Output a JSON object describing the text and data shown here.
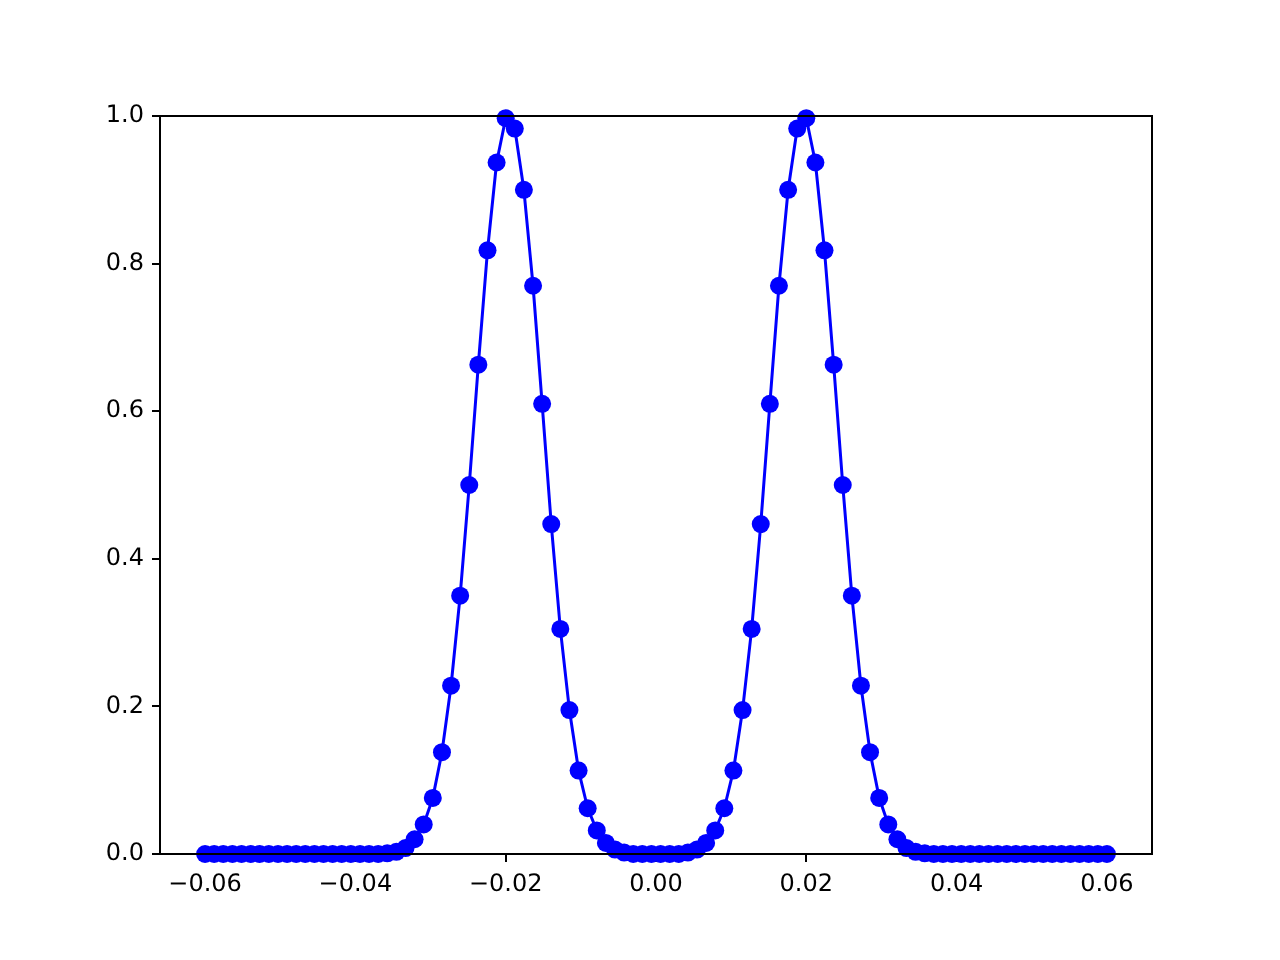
{
  "chart_data": {
    "type": "line",
    "color": "#0000ff",
    "marker": "circle",
    "line_style": "solid",
    "grid": false,
    "legend": false,
    "x": [
      -0.06,
      -0.05879,
      -0.05758,
      -0.05636,
      -0.05515,
      -0.05394,
      -0.05273,
      -0.05152,
      -0.0503,
      -0.04909,
      -0.04788,
      -0.04667,
      -0.04545,
      -0.04424,
      -0.04303,
      -0.04182,
      -0.04061,
      -0.03939,
      -0.03818,
      -0.03697,
      -0.03576,
      -0.03455,
      -0.03333,
      -0.03212,
      -0.03091,
      -0.0297,
      -0.02848,
      -0.02727,
      -0.02606,
      -0.02485,
      -0.02364,
      -0.02242,
      -0.02121,
      -0.02,
      -0.01879,
      -0.01758,
      -0.01636,
      -0.01515,
      -0.01394,
      -0.01273,
      -0.01152,
      -0.0103,
      -0.00909,
      -0.00788,
      -0.00667,
      -0.00545,
      -0.00424,
      -0.00303,
      -0.00182,
      -0.00061,
      0.00061,
      0.00182,
      0.00303,
      0.00424,
      0.00545,
      0.00667,
      0.00788,
      0.00909,
      0.0103,
      0.01152,
      0.01273,
      0.01394,
      0.01515,
      0.01636,
      0.01758,
      0.01879,
      0.02,
      0.02121,
      0.02242,
      0.02364,
      0.02485,
      0.02606,
      0.02727,
      0.02848,
      0.0297,
      0.03091,
      0.03212,
      0.03333,
      0.03455,
      0.03576,
      0.03697,
      0.03818,
      0.03939,
      0.04061,
      0.04182,
      0.04303,
      0.04424,
      0.04545,
      0.04667,
      0.04788,
      0.04909,
      0.0503,
      0.05152,
      0.05273,
      0.05394,
      0.05515,
      0.05636,
      0.05758,
      0.05879,
      0.06
    ],
    "values": [
      0,
      0,
      0,
      0,
      0,
      0,
      0,
      0,
      0,
      0,
      0,
      0,
      0,
      0,
      0,
      0,
      0,
      0,
      0,
      0,
      0.001,
      0.003,
      0.008,
      0.02,
      0.04,
      0.076,
      0.138,
      0.228,
      0.35,
      0.5,
      0.663,
      0.818,
      0.937,
      0.997,
      0.983,
      0.9,
      0.77,
      0.61,
      0.447,
      0.305,
      0.195,
      0.113,
      0.062,
      0.032,
      0.015,
      0.006,
      0.002,
      0,
      0,
      0,
      0,
      0,
      0,
      0.002,
      0.006,
      0.015,
      0.032,
      0.062,
      0.113,
      0.195,
      0.305,
      0.447,
      0.61,
      0.77,
      0.9,
      0.983,
      0.997,
      0.937,
      0.818,
      0.663,
      0.5,
      0.35,
      0.228,
      0.138,
      0.076,
      0.04,
      0.02,
      0.008,
      0.003,
      0.001,
      0,
      0,
      0,
      0,
      0,
      0,
      0,
      0,
      0,
      0,
      0,
      0,
      0,
      0,
      0,
      0,
      0,
      0,
      0,
      0
    ],
    "xlim": [
      -0.066,
      0.066
    ],
    "xticks": [
      {
        "value": -0.06,
        "label": "−0.06"
      },
      {
        "value": -0.04,
        "label": "−0.04"
      },
      {
        "value": -0.02,
        "label": "−0.02"
      },
      {
        "value": 0,
        "label": "0.00"
      },
      {
        "value": 0.02,
        "label": "0.02"
      },
      {
        "value": 0.04,
        "label": "0.04"
      },
      {
        "value": 0.06,
        "label": "0.06"
      }
    ],
    "ylim": [
      0,
      1
    ],
    "yticks": [
      {
        "value": 0,
        "label": "0.0"
      },
      {
        "value": 0.2,
        "label": "0.2"
      },
      {
        "value": 0.4,
        "label": "0.4"
      },
      {
        "value": 0.6,
        "label": "0.6"
      },
      {
        "value": 0.8,
        "label": "0.8"
      },
      {
        "value": 1,
        "label": "1.0"
      }
    ]
  }
}
